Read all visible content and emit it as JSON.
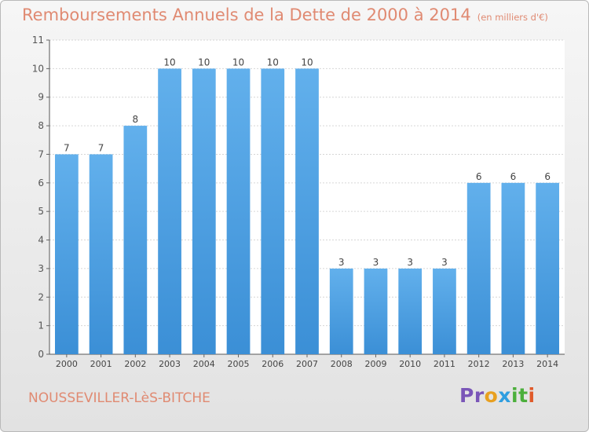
{
  "title": "Remboursements Annuels de la Dette de 2000 à 2014",
  "unit_note": "(en milliers d'€)",
  "city": "NOUSSEVILLER-LèS-BITCHE",
  "logo": {
    "letters": [
      "P",
      "r",
      "o",
      "x",
      "i",
      "t",
      "i"
    ],
    "colors": [
      "#7a56b8",
      "#7a56b8",
      "#e8a020",
      "#2f9ee0",
      "#4caf3c",
      "#4caf3c",
      "#e05a2a"
    ]
  },
  "colors": {
    "bar": "#3b8fd6",
    "bar_light": "#62b0ec",
    "text": "#e08a72"
  },
  "chart_data": {
    "type": "bar",
    "title": "Remboursements Annuels de la Dette de 2000 à 2014",
    "categories": [
      "2000",
      "2001",
      "2002",
      "2003",
      "2004",
      "2005",
      "2006",
      "2007",
      "2008",
      "2009",
      "2010",
      "2011",
      "2012",
      "2013",
      "2014"
    ],
    "values": [
      7,
      7,
      8,
      10,
      10,
      10,
      10,
      10,
      3,
      3,
      3,
      3,
      6,
      6,
      6
    ],
    "ylim": [
      0,
      11
    ],
    "yticks": [
      0,
      1,
      2,
      3,
      4,
      5,
      6,
      7,
      8,
      9,
      10,
      11
    ],
    "grid": true,
    "xlabel": "",
    "ylabel": ""
  }
}
